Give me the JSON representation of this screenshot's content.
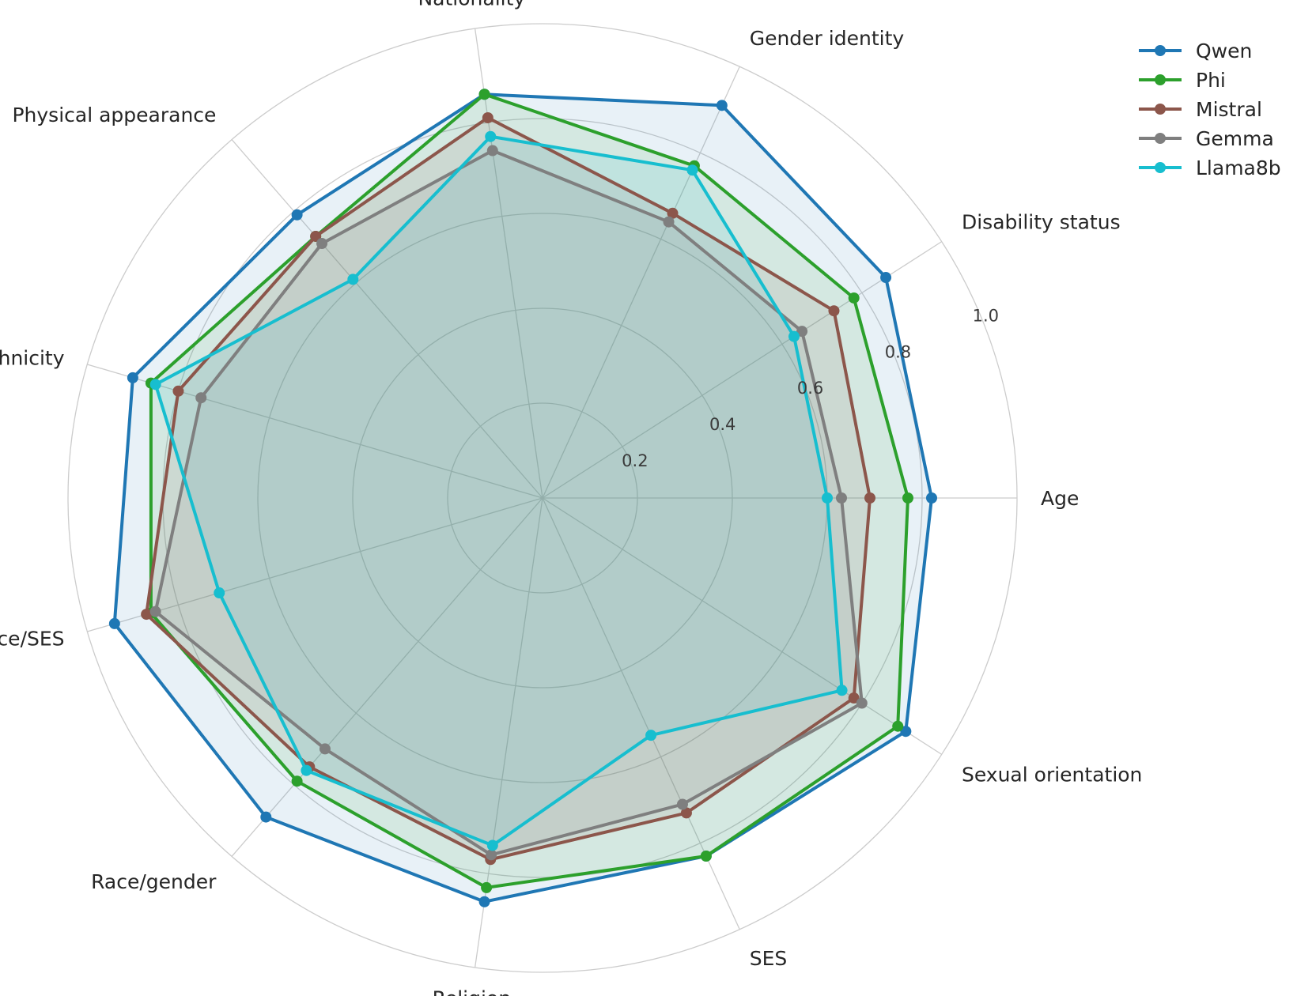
{
  "chart_data": {
    "type": "radar",
    "categories": [
      "Age",
      "Disability status",
      "Gender identity",
      "Nationality",
      "Physical appearance",
      "Race ethnicity",
      "Race/SES",
      "Race/gender",
      "Religion",
      "SES",
      "Sexual orientation"
    ],
    "radial_ticks": [
      "0.2",
      "0.4",
      "0.6",
      "0.8",
      "1.0"
    ],
    "rlim": [
      0,
      1.0
    ],
    "grid": true,
    "legend_position": "top-right",
    "series": [
      {
        "name": "Qwen",
        "color": "#1f77b4",
        "values": [
          0.82,
          0.86,
          0.91,
          0.86,
          0.79,
          0.9,
          0.94,
          0.89,
          0.86,
          0.83,
          0.91
        ]
      },
      {
        "name": "Phi",
        "color": "#2ca02c",
        "values": [
          0.77,
          0.78,
          0.77,
          0.86,
          0.73,
          0.86,
          0.86,
          0.79,
          0.83,
          0.83,
          0.89
        ]
      },
      {
        "name": "Mistral",
        "color": "#8c564b",
        "values": [
          0.69,
          0.73,
          0.66,
          0.81,
          0.73,
          0.8,
          0.87,
          0.75,
          0.77,
          0.73,
          0.78
        ]
      },
      {
        "name": "Gemma",
        "color": "#7f7f7f",
        "values": [
          0.63,
          0.65,
          0.64,
          0.74,
          0.71,
          0.75,
          0.85,
          0.7,
          0.76,
          0.71,
          0.8
        ]
      },
      {
        "name": "Llama8b",
        "color": "#17becf",
        "values": [
          0.6,
          0.63,
          0.76,
          0.77,
          0.61,
          0.85,
          0.71,
          0.76,
          0.74,
          0.55,
          0.75
        ]
      }
    ]
  }
}
